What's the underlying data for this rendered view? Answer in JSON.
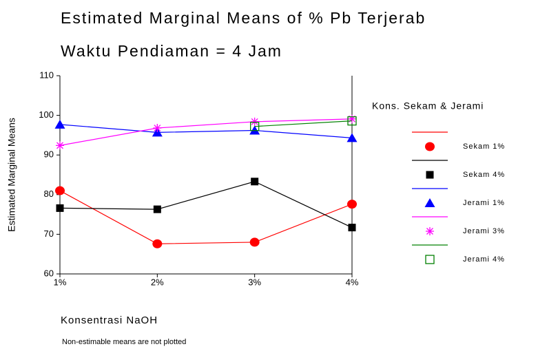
{
  "chart_data": {
    "type": "line",
    "title": "Estimated Marginal Means of % Pb Terjerab",
    "subtitle": "Waktu Pendiaman = 4 Jam",
    "y_label": "Estimated Marginal Means",
    "x_label": "Konsentrasi NaOH",
    "footnote": "Non-estimable means are not plotted",
    "legend_title": "Kons. Sekam & Jerami",
    "legend_position": "right",
    "categories": [
      "1%",
      "2%",
      "3%",
      "4%"
    ],
    "series": [
      {
        "name": "Sekam 1%",
        "color": "#ff0000",
        "marker": "circle",
        "values": [
          81.0,
          67.6,
          68.0,
          77.6
        ]
      },
      {
        "name": "Sekam 4%",
        "color": "#000000",
        "marker": "square",
        "values": [
          76.6,
          76.3,
          83.3,
          71.7
        ]
      },
      {
        "name": "Jerami 1%",
        "color": "#0000ff",
        "marker": "triangle",
        "values": [
          97.7,
          95.7,
          96.2,
          94.3
        ]
      },
      {
        "name": "Jerami 3%",
        "color": "#ff00ff",
        "marker": "star",
        "values": [
          92.4,
          96.8,
          98.4,
          99.1
        ]
      },
      {
        "name": "Jerami 4%",
        "color": "#008000",
        "marker": "open-square",
        "values": [
          null,
          null,
          97.2,
          98.6
        ]
      }
    ],
    "ylim": [
      60,
      110
    ],
    "yticks": [
      60,
      70,
      80,
      90,
      100,
      110
    ],
    "grid": false
  }
}
